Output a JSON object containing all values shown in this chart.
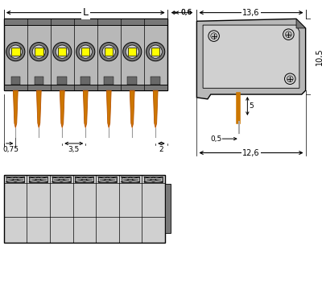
{
  "bg_color": "#ffffff",
  "gray_body": "#b8b8b8",
  "gray_light": "#d0d0d0",
  "gray_dark": "#787878",
  "gray_med": "#a0a0a0",
  "gray_darker": "#686868",
  "yellow": "#ffff00",
  "orange": "#b85000",
  "orange2": "#cc7700",
  "black": "#000000",
  "line_color": "#000000",
  "num_poles": 7,
  "dim_L_label": "L",
  "dim_06": "0,6",
  "dim_136": "13,6",
  "dim_105": "10,5",
  "dim_075": "0,75",
  "dim_35": "3,5",
  "dim_2": "2",
  "dim_05": "0,5",
  "dim_5": "5",
  "dim_126": "12,6"
}
